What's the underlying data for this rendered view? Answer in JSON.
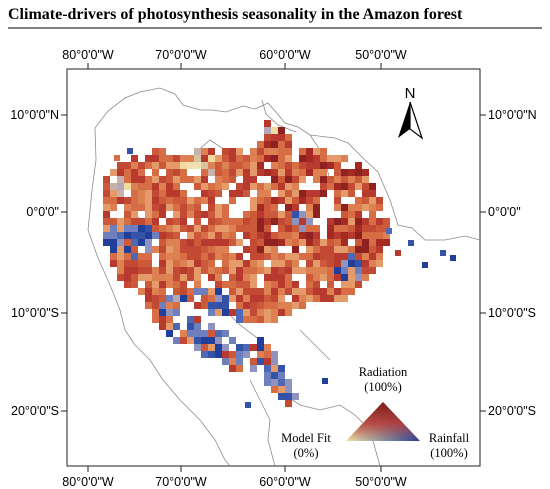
{
  "figure": {
    "title": "Climate-drivers of photosynthesis seasonality in the Amazon forest"
  },
  "map": {
    "top_axis_labels": [
      "80°0'0\"W",
      "70°0'0\"W",
      "60°0'0\"W",
      "50°0'0\"W"
    ],
    "bottom_axis_labels": [
      "80°0'0\"W",
      "70°0'0\"W",
      "60°0'0\"W",
      "50°0'0\"W"
    ],
    "left_axis_labels": [
      "10°0'0\"N",
      "0°0'0\"",
      "10°0'0\"S",
      "20°0'0\"S"
    ],
    "right_axis_labels": [
      "10°0'0\"N",
      "0°0'0\"",
      "10°0'0\"S",
      "20°0'0\"S"
    ],
    "north_arrow_label": "N",
    "colors": {
      "radiation": "#7b1a1a",
      "rainfall": "#1f3f9b",
      "model_fit": "#f3e6a3",
      "boundary": "#8c8c8c"
    }
  },
  "legend": {
    "radiation_label": "Radiation",
    "radiation_pct": "(100%)",
    "model_fit_label": "Model Fit",
    "model_fit_pct": "(0%)",
    "rainfall_label": "Rainfall",
    "rainfall_pct": "(100%)"
  }
}
